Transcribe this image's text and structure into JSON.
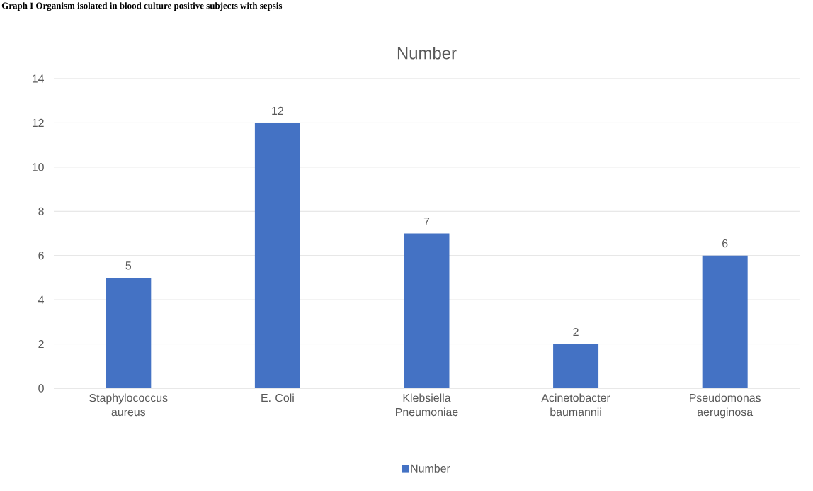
{
  "chart_data": {
    "type": "bar",
    "title": "Number",
    "annotations": [
      "Graph I Organism isolated in blood culture positive subjects with sepsis"
    ],
    "categories": [
      "Staphylococcus aureus",
      "E. Coli",
      "Klebsiella Pneumoniae",
      "Acinetobacter baumannii",
      "Pseudomonas aeruginosa"
    ],
    "series": [
      {
        "name": "Number",
        "color": "#4472c4",
        "values": [
          5,
          12,
          7,
          2,
          6
        ]
      }
    ],
    "ylim": [
      0,
      14
    ],
    "yticks": [
      0,
      2,
      4,
      6,
      8,
      10,
      12,
      14
    ],
    "grid": "y",
    "legend": "bottom",
    "data_labels": true
  }
}
